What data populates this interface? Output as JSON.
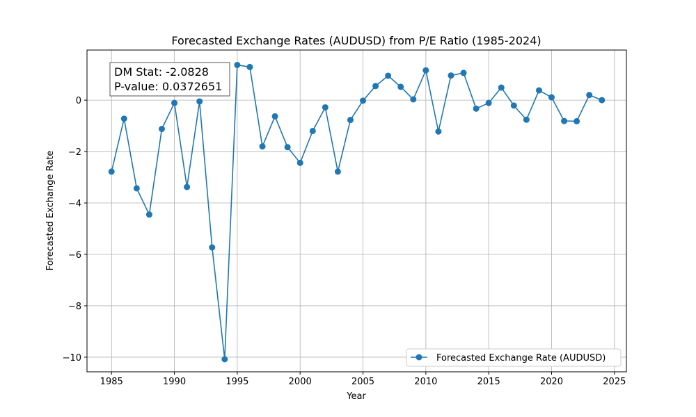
{
  "chart_data": {
    "type": "line",
    "title": "Forecasted Exchange Rates (AUDUSD) from P/E Ratio (1985-2024)",
    "xlabel": "Year",
    "ylabel": "Forecasted Exchange Rate",
    "xlim": [
      1983.05,
      1985.0
    ],
    "ylim": [
      -10.57,
      1.95
    ],
    "xlim_full": [
      1983.05,
      2025.95
    ],
    "xticks": [
      1985,
      1990,
      1995,
      2000,
      2005,
      2010,
      2015,
      2020,
      2025
    ],
    "yticks": [
      0,
      -2,
      -4,
      -6,
      -8,
      -10
    ],
    "ytick_labels": [
      "0",
      "−2",
      "−4",
      "−6",
      "−8",
      "−10"
    ],
    "grid": true,
    "legend_position": "lower right",
    "series": [
      {
        "name": "Forecasted Exchange Rate (AUDUSD)",
        "color": "#1f77b4",
        "marker": "circle",
        "x": [
          1985,
          1986,
          1987,
          1988,
          1989,
          1990,
          1991,
          1992,
          1993,
          1994,
          1995,
          1996,
          1997,
          1998,
          1999,
          2000,
          2001,
          2002,
          2003,
          2004,
          2005,
          2006,
          2007,
          2008,
          2009,
          2010,
          2011,
          2012,
          2013,
          2014,
          2015,
          2016,
          2017,
          2018,
          2019,
          2020,
          2021,
          2022,
          2023,
          2024
        ],
        "values": [
          -2.78,
          -0.72,
          -3.43,
          -4.45,
          -1.12,
          -0.11,
          -3.38,
          -0.05,
          -5.73,
          -10.08,
          1.37,
          1.29,
          -1.8,
          -0.63,
          -1.83,
          -2.44,
          -1.2,
          -0.28,
          -2.78,
          -0.77,
          -0.02,
          0.55,
          0.95,
          0.52,
          0.03,
          1.16,
          -1.22,
          0.96,
          1.06,
          -0.33,
          -0.11,
          0.49,
          -0.21,
          -0.76,
          0.38,
          0.11,
          -0.81,
          -0.82,
          0.2,
          0.0
        ]
      }
    ],
    "annotation": {
      "line1": "DM Stat: -2.0828",
      "line2": "P-value: 0.0372651"
    }
  }
}
